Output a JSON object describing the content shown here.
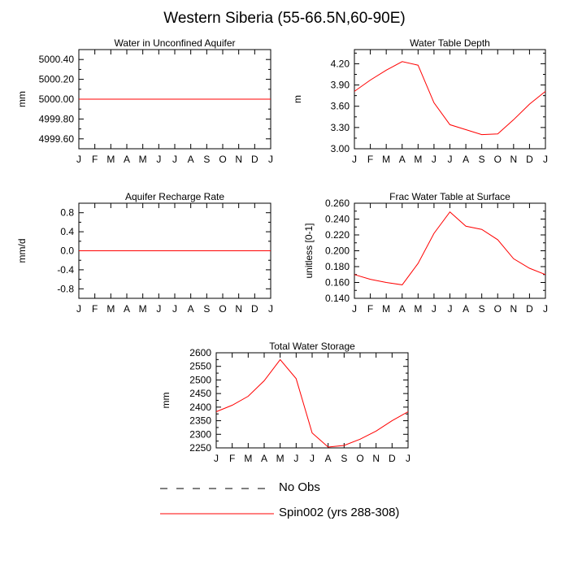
{
  "title": "Western Siberia (55-66.5N,60-90E)",
  "legend": {
    "obs_label": "No Obs",
    "model_label": "Spin002 (yrs 288-308)",
    "obs_color": "#000000",
    "model_color": "#ff0000"
  },
  "chart_data": [
    {
      "type": "line",
      "title": "Water in Unconfined Aquifer",
      "ylabel": "mm",
      "x": [
        "J",
        "F",
        "M",
        "A",
        "M",
        "J",
        "J",
        "A",
        "S",
        "O",
        "N",
        "D",
        "J"
      ],
      "ylim": [
        4999.5,
        5000.5
      ],
      "yticks": [
        4999.6,
        4999.8,
        5000.0,
        5000.2,
        5000.4
      ],
      "ytick_labels": [
        "4999.60",
        "4999.80",
        "5000.00",
        "5000.20",
        "5000.40"
      ],
      "series": [
        {
          "name": "Spin002 (yrs 288-308)",
          "color": "#ff0000",
          "values": [
            5000,
            5000,
            5000,
            5000,
            5000,
            5000,
            5000,
            5000,
            5000,
            5000,
            5000,
            5000,
            5000
          ]
        }
      ]
    },
    {
      "type": "line",
      "title": "Water Table Depth",
      "ylabel": "m",
      "x": [
        "J",
        "F",
        "M",
        "A",
        "M",
        "J",
        "J",
        "A",
        "S",
        "O",
        "N",
        "D",
        "J"
      ],
      "ylim": [
        3.0,
        4.4
      ],
      "yticks": [
        3.0,
        3.3,
        3.6,
        3.9,
        4.2
      ],
      "ytick_labels": [
        "3.00",
        "3.30",
        "3.60",
        "3.90",
        "4.20"
      ],
      "series": [
        {
          "name": "Spin002 (yrs 288-308)",
          "color": "#ff0000",
          "values": [
            3.81,
            3.97,
            4.11,
            4.23,
            4.18,
            3.65,
            3.34,
            3.27,
            3.2,
            3.21,
            3.41,
            3.63,
            3.81
          ]
        }
      ]
    },
    {
      "type": "line",
      "title": "Aquifer Recharge Rate",
      "ylabel": "mm/d",
      "x": [
        "J",
        "F",
        "M",
        "A",
        "M",
        "J",
        "J",
        "A",
        "S",
        "O",
        "N",
        "D",
        "J"
      ],
      "ylim": [
        -1.0,
        1.0
      ],
      "yticks": [
        -0.8,
        -0.4,
        0.0,
        0.4,
        0.8
      ],
      "ytick_labels": [
        "-0.8",
        "-0.4",
        "0.0",
        "0.4",
        "0.8"
      ],
      "series": [
        {
          "name": "Spin002 (yrs 288-308)",
          "color": "#ff0000",
          "values": [
            0,
            0,
            0,
            0,
            0,
            0,
            0,
            0,
            0,
            0,
            0,
            0,
            0
          ]
        }
      ]
    },
    {
      "type": "line",
      "title": "Frac Water Table at Surface",
      "ylabel": "unitless [0-1]",
      "x": [
        "J",
        "F",
        "M",
        "A",
        "M",
        "J",
        "J",
        "A",
        "S",
        "O",
        "N",
        "D",
        "J"
      ],
      "ylim": [
        0.14,
        0.26
      ],
      "yticks": [
        0.14,
        0.16,
        0.18,
        0.2,
        0.22,
        0.24,
        0.26
      ],
      "ytick_labels": [
        "0.140",
        "0.160",
        "0.180",
        "0.200",
        "0.220",
        "0.240",
        "0.260"
      ],
      "series": [
        {
          "name": "Spin002 (yrs 288-308)",
          "color": "#ff0000",
          "values": [
            0.17,
            0.164,
            0.16,
            0.157,
            0.184,
            0.222,
            0.249,
            0.231,
            0.227,
            0.214,
            0.19,
            0.178,
            0.17
          ]
        }
      ]
    },
    {
      "type": "line",
      "title": "Total Water Storage",
      "ylabel": "mm",
      "x": [
        "J",
        "F",
        "M",
        "A",
        "M",
        "J",
        "J",
        "A",
        "S",
        "O",
        "N",
        "D",
        "J"
      ],
      "ylim": [
        2250,
        2600
      ],
      "yticks": [
        2250,
        2300,
        2350,
        2400,
        2450,
        2500,
        2550,
        2600
      ],
      "ytick_labels": [
        "2250",
        "2300",
        "2350",
        "2400",
        "2450",
        "2500",
        "2550",
        "2600"
      ],
      "series": [
        {
          "name": "Spin002 (yrs 288-308)",
          "color": "#ff0000",
          "values": [
            2383,
            2407,
            2440,
            2497,
            2575,
            2505,
            2305,
            2253,
            2259,
            2282,
            2312,
            2350,
            2383
          ]
        }
      ]
    }
  ]
}
